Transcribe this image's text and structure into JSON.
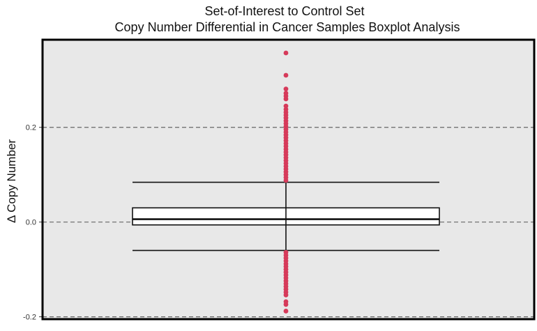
{
  "chart_data": {
    "type": "boxplot",
    "title": "Set-of-Interest to Control Set",
    "subtitle": "Copy Number Differential in Cancer Samples Boxplot Analysis",
    "xlabel": "",
    "ylabel": "Δ Copy Number",
    "ylim": [
      -0.205,
      0.385
    ],
    "yticks": [
      -0.2,
      0.0,
      0.2
    ],
    "ytick_labels": [
      "-0.2",
      "0.0",
      "0.2"
    ],
    "grid": {
      "y_major": true,
      "style": "dashed"
    },
    "box": {
      "whisker_low": -0.06,
      "q1": -0.006,
      "median": 0.006,
      "q3": 0.03,
      "whisker_high": 0.084
    },
    "outliers": [
      0.357,
      0.31,
      0.281,
      0.272,
      0.266,
      0.26,
      0.245,
      0.238,
      0.232,
      0.226,
      0.22,
      0.214,
      0.208,
      0.202,
      0.196,
      0.19,
      0.184,
      0.178,
      0.172,
      0.166,
      0.16,
      0.154,
      0.148,
      0.142,
      0.136,
      0.13,
      0.124,
      0.118,
      0.112,
      0.106,
      0.1,
      0.094,
      0.088,
      -0.064,
      -0.07,
      -0.076,
      -0.082,
      -0.088,
      -0.094,
      -0.1,
      -0.106,
      -0.112,
      -0.118,
      -0.124,
      -0.13,
      -0.136,
      -0.142,
      -0.148,
      -0.154,
      -0.168,
      -0.174,
      -0.188
    ],
    "colors": {
      "panel_background": "#e8e8e8",
      "outlier": "#d63a5a",
      "box_fill": "#ffffff",
      "box_line": "#111111",
      "grid_line": "#666666",
      "frame": "#000000"
    }
  }
}
